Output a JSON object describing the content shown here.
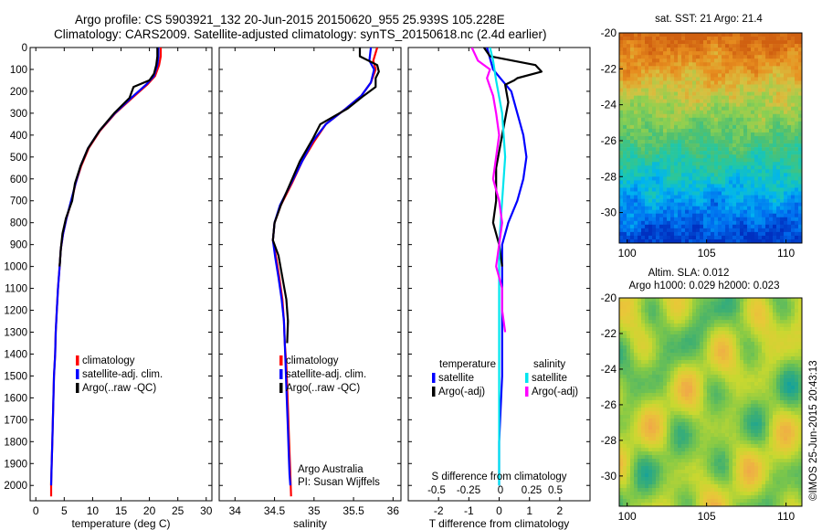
{
  "header": {
    "line1": "Argo profile: CS 5903921_132 20-Jun-2015 20150620_955 25.939S 105.228E",
    "line2": "Climatology: CARS2009. Satellite-adjusted climatology: synTS_20150618.nc (2.4d earlier)"
  },
  "depth_axis": {
    "ticks": [
      0,
      100,
      200,
      300,
      400,
      500,
      600,
      700,
      800,
      900,
      1000,
      1100,
      1200,
      1300,
      1400,
      1500,
      1600,
      1700,
      1800,
      1900,
      2000
    ],
    "ylim": [
      0,
      2070
    ]
  },
  "colors": {
    "climatology": "#ff0000",
    "satellite": "#0000ff",
    "argo": "#000000",
    "salinity_satellite": "#00e5ee",
    "salinity_argo": "#ff00ff"
  },
  "chart_data": [
    {
      "type": "line",
      "id": "temperature",
      "xlabel": "temperature (deg C)",
      "xlim": [
        -1,
        31
      ],
      "xticks": [
        0,
        5,
        10,
        15,
        20,
        25,
        30
      ],
      "legend": [
        "climatology",
        "satellite-adj. clim.",
        "Argo(..raw -QC)"
      ],
      "series": [
        {
          "name": "climatology",
          "color": "#ff0000",
          "points": [
            [
              22,
              0
            ],
            [
              22,
              40
            ],
            [
              21.7,
              80
            ],
            [
              21,
              130
            ],
            [
              19.6,
              170
            ],
            [
              17,
              230
            ],
            [
              14,
              300
            ],
            [
              11.3,
              380
            ],
            [
              9.3,
              460
            ],
            [
              8,
              540
            ],
            [
              7,
              620
            ],
            [
              6.3,
              700
            ],
            [
              5.4,
              780
            ],
            [
              4.8,
              850
            ],
            [
              4.4,
              920
            ],
            [
              4.2,
              1000
            ],
            [
              3.9,
              1100
            ],
            [
              3.7,
              1200
            ],
            [
              3.5,
              1300
            ],
            [
              3.4,
              1400
            ],
            [
              3.2,
              1500
            ],
            [
              3.1,
              1600
            ],
            [
              3,
              1700
            ],
            [
              2.9,
              1800
            ],
            [
              2.8,
              1900
            ],
            [
              2.7,
              1990
            ],
            [
              2.7,
              2050
            ]
          ]
        },
        {
          "name": "satellite-adj. clim.",
          "color": "#0000ff",
          "points": [
            [
              21.6,
              0
            ],
            [
              21.6,
              40
            ],
            [
              21.4,
              80
            ],
            [
              20.8,
              130
            ],
            [
              19.4,
              170
            ],
            [
              16.8,
              230
            ],
            [
              13.9,
              300
            ],
            [
              11.2,
              380
            ],
            [
              9.2,
              460
            ],
            [
              7.9,
              540
            ],
            [
              7,
              620
            ],
            [
              6.2,
              700
            ],
            [
              5.4,
              780
            ],
            [
              4.8,
              850
            ],
            [
              4.4,
              920
            ],
            [
              4.2,
              1000
            ],
            [
              3.9,
              1100
            ],
            [
              3.7,
              1200
            ],
            [
              3.5,
              1300
            ],
            [
              3.4,
              1400
            ],
            [
              3.2,
              1500
            ],
            [
              3.1,
              1600
            ],
            [
              3,
              1700
            ],
            [
              2.9,
              1800
            ],
            [
              2.8,
              1900
            ],
            [
              2.7,
              2000
            ]
          ]
        },
        {
          "name": "Argo(..raw -QC)",
          "color": "#000000",
          "points": [
            [
              21.4,
              0
            ],
            [
              21.4,
              40
            ],
            [
              21.2,
              80
            ],
            [
              20.8,
              120
            ],
            [
              20,
              150
            ],
            [
              17.2,
              180
            ],
            [
              16.5,
              230
            ],
            [
              13.8,
              300
            ],
            [
              11.2,
              380
            ],
            [
              9.2,
              460
            ],
            [
              7.9,
              540
            ],
            [
              6.9,
              620
            ],
            [
              6.4,
              700
            ],
            [
              5.3,
              780
            ],
            [
              4.7,
              850
            ],
            [
              4.4,
              920
            ],
            [
              4.2,
              1000
            ]
          ]
        }
      ]
    },
    {
      "type": "line",
      "id": "salinity",
      "xlabel": "salinity",
      "xlim": [
        33.8,
        36.1
      ],
      "xticks": [
        34,
        34.5,
        35,
        35.5,
        36
      ],
      "legend": [
        "climatology",
        "satellite-adj. clim.",
        "Argo(..raw -QC)"
      ],
      "annotation": [
        "Argo Australia",
        "PI: Susan Wijffels"
      ],
      "series": [
        {
          "name": "climatology",
          "color": "#ff0000",
          "points": [
            [
              35.8,
              0
            ],
            [
              35.75,
              60
            ],
            [
              35.78,
              100
            ],
            [
              35.72,
              160
            ],
            [
              35.6,
              220
            ],
            [
              35.4,
              280
            ],
            [
              35.15,
              350
            ],
            [
              35,
              430
            ],
            [
              34.85,
              520
            ],
            [
              34.72,
              620
            ],
            [
              34.58,
              720
            ],
            [
              34.5,
              800
            ],
            [
              34.48,
              880
            ],
            [
              34.52,
              960
            ],
            [
              34.56,
              1050
            ],
            [
              34.6,
              1150
            ],
            [
              34.62,
              1250
            ],
            [
              34.63,
              1350
            ],
            [
              34.65,
              1450
            ],
            [
              34.66,
              1550
            ],
            [
              34.67,
              1650
            ],
            [
              34.68,
              1750
            ],
            [
              34.69,
              1850
            ],
            [
              34.7,
              1950
            ],
            [
              34.71,
              2050
            ]
          ]
        },
        {
          "name": "satellite-adj. clim.",
          "color": "#0000ff",
          "points": [
            [
              35.72,
              0
            ],
            [
              35.7,
              60
            ],
            [
              35.76,
              100
            ],
            [
              35.72,
              160
            ],
            [
              35.6,
              220
            ],
            [
              35.4,
              280
            ],
            [
              35.15,
              350
            ],
            [
              34.98,
              430
            ],
            [
              34.85,
              520
            ],
            [
              34.71,
              620
            ],
            [
              34.57,
              720
            ],
            [
              34.5,
              800
            ],
            [
              34.48,
              880
            ],
            [
              34.51,
              960
            ],
            [
              34.55,
              1050
            ],
            [
              34.59,
              1150
            ],
            [
              34.62,
              1250
            ],
            [
              34.63,
              1350
            ],
            [
              34.64,
              1450
            ],
            [
              34.65,
              1550
            ],
            [
              34.66,
              1650
            ],
            [
              34.67,
              1750
            ],
            [
              34.68,
              1850
            ],
            [
              34.69,
              1950
            ],
            [
              34.7,
              2000
            ]
          ]
        },
        {
          "name": "Argo(..raw -QC)",
          "color": "#000000",
          "points": [
            [
              35.58,
              0
            ],
            [
              35.58,
              40
            ],
            [
              35.8,
              80
            ],
            [
              35.82,
              110
            ],
            [
              35.78,
              140
            ],
            [
              35.78,
              180
            ],
            [
              35.63,
              220
            ],
            [
              35.42,
              280
            ],
            [
              35.08,
              350
            ],
            [
              34.98,
              420
            ],
            [
              34.82,
              520
            ],
            [
              34.7,
              620
            ],
            [
              34.58,
              720
            ],
            [
              34.5,
              800
            ],
            [
              34.48,
              880
            ],
            [
              34.55,
              950
            ],
            [
              34.6,
              1050
            ],
            [
              34.65,
              1150
            ],
            [
              34.67,
              1250
            ],
            [
              34.66,
              1350
            ]
          ]
        }
      ]
    },
    {
      "type": "line",
      "id": "differences",
      "xlabel": "T difference from climatology",
      "xlabel2": "S difference from climatology",
      "xlim": [
        -3,
        3
      ],
      "xticks": [
        -2,
        -1,
        0,
        1,
        2
      ],
      "xticks_s": [
        "-0.5",
        "-0.25",
        "0",
        "0.25",
        "0.5"
      ],
      "legend_headers": [
        "temperature",
        "salinity"
      ],
      "legend": [
        "satellite",
        "Argo(-adj)",
        "satellite",
        "Argo(-adj)"
      ],
      "series": [
        {
          "name": "satellite",
          "group": "temperature",
          "color": "#0000ff",
          "points": [
            [
              -0.4,
              0
            ],
            [
              -0.3,
              50
            ],
            [
              -0.2,
              100
            ],
            [
              0.1,
              150
            ],
            [
              0.4,
              200
            ],
            [
              0.6,
              300
            ],
            [
              0.8,
              400
            ],
            [
              0.9,
              500
            ],
            [
              0.8,
              600
            ],
            [
              0.6,
              700
            ],
            [
              0.3,
              800
            ],
            [
              0.1,
              900
            ],
            [
              0.1,
              1000
            ],
            [
              0.1,
              1200
            ],
            [
              0.1,
              1500
            ],
            [
              0,
              1800
            ],
            [
              0,
              2000
            ]
          ]
        },
        {
          "name": "Argo(-adj)",
          "group": "temperature",
          "color": "#000000",
          "points": [
            [
              -0.5,
              0
            ],
            [
              -0.3,
              40
            ],
            [
              1.2,
              80
            ],
            [
              1.4,
              110
            ],
            [
              0.6,
              140
            ],
            [
              0.5,
              150
            ],
            [
              0.2,
              170
            ],
            [
              0.3,
              250
            ],
            [
              0.1,
              400
            ],
            [
              -0.1,
              550
            ],
            [
              -0.1,
              700
            ],
            [
              -0.2,
              800
            ],
            [
              0,
              900
            ],
            [
              0.1,
              1000
            ]
          ]
        },
        {
          "name": "satellite",
          "group": "salinity",
          "color": "#00e5ee",
          "points": [
            [
              -0.3,
              0
            ],
            [
              -0.2,
              60
            ],
            [
              -0.1,
              150
            ],
            [
              0.1,
              300
            ],
            [
              0.2,
              500
            ],
            [
              0.1,
              700
            ],
            [
              0,
              900
            ],
            [
              0,
              1100
            ],
            [
              0,
              1300
            ],
            [
              0,
              1600
            ],
            [
              0,
              2000
            ]
          ]
        },
        {
          "name": "Argo(-adj)",
          "group": "salinity",
          "color": "#ff00ff",
          "points": [
            [
              -0.9,
              0
            ],
            [
              -0.7,
              60
            ],
            [
              -0.3,
              100
            ],
            [
              -0.4,
              140
            ],
            [
              -0.3,
              180
            ],
            [
              -0.2,
              220
            ],
            [
              -0.1,
              300
            ],
            [
              0,
              400
            ],
            [
              -0.1,
              500
            ],
            [
              -0.2,
              600
            ],
            [
              0,
              700
            ],
            [
              0.1,
              800
            ],
            [
              0,
              900
            ],
            [
              -0.1,
              1000
            ],
            [
              0.1,
              1100
            ],
            [
              0.1,
              1200
            ],
            [
              0.2,
              1300
            ]
          ]
        }
      ]
    },
    {
      "type": "heatmap",
      "id": "sst_map",
      "title": "sat. SST: 21  Argo: 21.4",
      "xlim": [
        99.5,
        111
      ],
      "ylim": [
        -31.7,
        -20
      ],
      "xticks": [
        100,
        105,
        110
      ],
      "yticks": [
        -20,
        -22,
        -24,
        -26,
        -28,
        -30
      ],
      "ytick_labels": [
        "-20",
        "-22",
        "-24",
        "-26",
        "-28",
        "-30"
      ],
      "palette": [
        "#0030c0",
        "#0070f0",
        "#00b4f0",
        "#20c8a8",
        "#50c070",
        "#90d050",
        "#d8c040",
        "#e89020",
        "#d06010"
      ],
      "field": "north_warm_south_cool"
    },
    {
      "type": "heatmap",
      "id": "sla_map",
      "title": "Altim. SLA: 0.012",
      "subtitle": "Argo h1000: 0.029  h2000: 0.023",
      "xlim": [
        99.5,
        111
      ],
      "ylim": [
        -31.7,
        -20
      ],
      "xticks": [
        100,
        105,
        110
      ],
      "yticks": [
        -20,
        -22,
        -24,
        -26,
        -28,
        -30
      ],
      "ytick_labels": [
        "-20",
        "-22",
        "-24",
        "-26",
        "-28",
        "-30"
      ],
      "palette": [
        "#10a0a0",
        "#40b070",
        "#80c848",
        "#c8d830",
        "#e8c838",
        "#f0a848"
      ],
      "field": "mottled"
    }
  ],
  "credit": "©IMOS 25-Jun-2015 20:43:13"
}
